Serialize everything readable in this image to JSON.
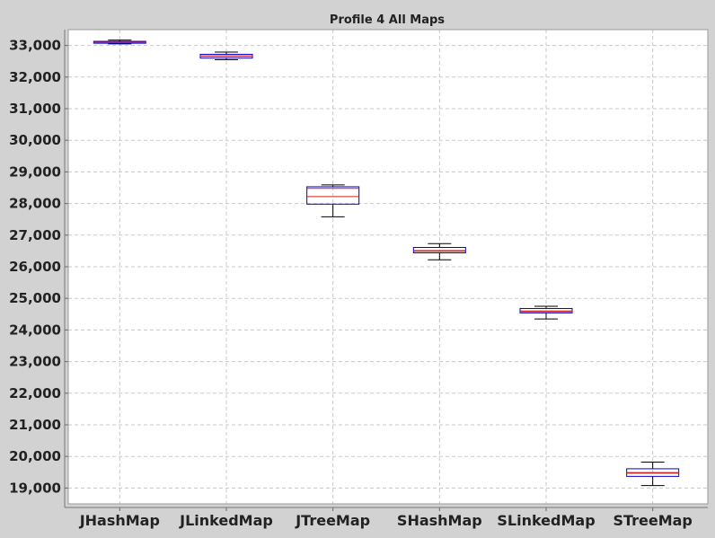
{
  "chart_data": {
    "type": "boxplot",
    "title": "Profile 4 All Maps",
    "xlabel": "",
    "ylabel": "",
    "ylim": [
      18500,
      33500
    ],
    "y_ticks": [
      19000,
      20000,
      21000,
      22000,
      23000,
      24000,
      25000,
      26000,
      27000,
      28000,
      29000,
      30000,
      31000,
      32000,
      33000
    ],
    "y_tick_labels": [
      "19,000",
      "20,000",
      "21,000",
      "22,000",
      "23,000",
      "24,000",
      "25,000",
      "26,000",
      "27,000",
      "28,000",
      "29,000",
      "30,000",
      "31,000",
      "32,000",
      "33,000"
    ],
    "grid": true,
    "categories": [
      "JHashMap",
      "JLinkedMap",
      "JTreeMap",
      "SHashMap",
      "SLinkedMap",
      "STreeMap"
    ],
    "boxes": [
      {
        "category": "JHashMap",
        "whisker_low": 33050,
        "q1": 33070,
        "median": 33100,
        "mean": 33100,
        "q3": 33130,
        "whisker_high": 33170
      },
      {
        "category": "JLinkedMap",
        "whisker_low": 32550,
        "q1": 32600,
        "median": 32660,
        "mean": 32670,
        "q3": 32720,
        "whisker_high": 32790
      },
      {
        "category": "JTreeMap",
        "whisker_low": 27580,
        "q1": 27980,
        "median": 28480,
        "mean": 28220,
        "q3": 28530,
        "whisker_high": 28590
      },
      {
        "category": "SHashMap",
        "whisker_low": 26220,
        "q1": 26440,
        "median": 26510,
        "mean": 26490,
        "q3": 26610,
        "whisker_high": 26730
      },
      {
        "category": "SLinkedMap",
        "whisker_low": 24350,
        "q1": 24540,
        "median": 24580,
        "mean": 24600,
        "q3": 24680,
        "whisker_high": 24750
      },
      {
        "category": "STreeMap",
        "whisker_low": 19080,
        "q1": 19370,
        "median": 19470,
        "mean": 19490,
        "q3": 19610,
        "whisker_high": 19820
      }
    ],
    "colors": {
      "box_outline": "#0000cc",
      "median": "#cc2222",
      "mean": "#cc2222",
      "whisker": "#000000",
      "plot_background": "#ffffff",
      "frame_background": "#d2d2d2",
      "grid": "#c8c8c8"
    }
  }
}
